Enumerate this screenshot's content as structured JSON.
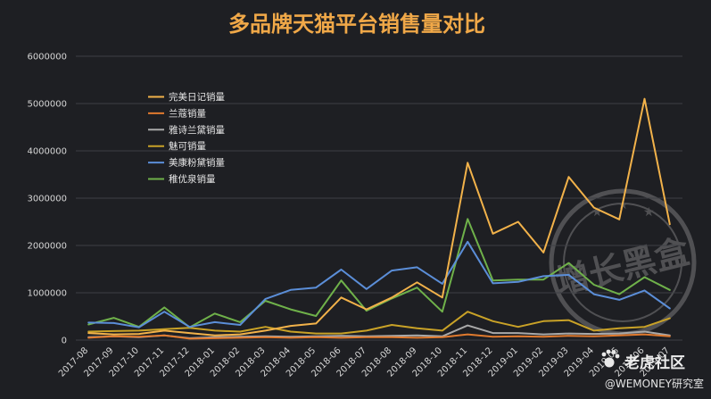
{
  "colors": {
    "background": "#1e1f23",
    "title": "#f0a848",
    "grid": "#3e3f44",
    "axis_text": "#d6d6d6",
    "legend_text": "#e6e6e6"
  },
  "watermark": {
    "stamp_text": "增长黑盒",
    "brand_text": "老虎社区",
    "handle_text": "@WEMONEY研究室",
    "brand_icon": "tiger-paw-icon"
  },
  "chart_data": {
    "type": "line",
    "title": "多品牌天猫平台销售量对比",
    "xlabel": "",
    "ylabel": "",
    "ylim": [
      0,
      6000000
    ],
    "yticks": [
      0,
      1000000,
      2000000,
      3000000,
      4000000,
      5000000,
      6000000
    ],
    "grid": true,
    "legend_position": "top-left",
    "x": [
      "2017-08",
      "2017-09",
      "2017-10",
      "2017-11",
      "2017-12",
      "2018-01",
      "2018-02",
      "2018-03",
      "2018-04",
      "2018-05",
      "2018-06",
      "2018-07",
      "2018-08",
      "2018-09",
      "2018-10",
      "2018-11",
      "2018-12",
      "2019-01",
      "2019-02",
      "2019-03",
      "2019-04",
      "2019-05",
      "2019-06",
      "2019-07"
    ],
    "series": [
      {
        "name": "完美日记销量",
        "color": "#f2b24a",
        "values": [
          150000,
          120000,
          130000,
          200000,
          150000,
          100000,
          120000,
          200000,
          300000,
          350000,
          900000,
          650000,
          900000,
          1220000,
          900000,
          3750000,
          2250000,
          2500000,
          1850000,
          3450000,
          2800000,
          2550000,
          5100000,
          2450000
        ]
      },
      {
        "name": "兰蔻销量",
        "color": "#e07a2e",
        "values": [
          50000,
          80000,
          70000,
          100000,
          30000,
          40000,
          50000,
          60000,
          50000,
          60000,
          50000,
          60000,
          60000,
          50000,
          60000,
          120000,
          70000,
          80000,
          70000,
          90000,
          80000,
          100000,
          120000,
          80000
        ]
      },
      {
        "name": "雅诗兰黛销量",
        "color": "#a9a9a9",
        "values": [
          60000,
          80000,
          60000,
          100000,
          40000,
          60000,
          70000,
          80000,
          70000,
          80000,
          90000,
          80000,
          90000,
          100000,
          80000,
          310000,
          150000,
          150000,
          120000,
          140000,
          130000,
          140000,
          180000,
          100000
        ]
      },
      {
        "name": "魅可销量",
        "color": "#c9a227",
        "values": [
          180000,
          190000,
          200000,
          230000,
          260000,
          200000,
          180000,
          280000,
          180000,
          140000,
          140000,
          200000,
          320000,
          250000,
          200000,
          600000,
          400000,
          280000,
          400000,
          420000,
          200000,
          250000,
          280000,
          460000
        ]
      },
      {
        "name": "美康粉黛销量",
        "color": "#5b8ed8",
        "values": [
          370000,
          360000,
          270000,
          600000,
          280000,
          380000,
          320000,
          870000,
          1060000,
          1110000,
          1490000,
          1080000,
          1470000,
          1540000,
          1190000,
          2080000,
          1200000,
          1230000,
          1350000,
          1380000,
          970000,
          850000,
          1050000,
          670000
        ]
      },
      {
        "name": "稚优泉销量",
        "color": "#6fb14a",
        "values": [
          330000,
          470000,
          280000,
          690000,
          270000,
          560000,
          380000,
          830000,
          650000,
          510000,
          1260000,
          620000,
          880000,
          1110000,
          600000,
          2560000,
          1260000,
          1280000,
          1280000,
          1630000,
          1170000,
          970000,
          1330000,
          1060000
        ]
      }
    ]
  }
}
